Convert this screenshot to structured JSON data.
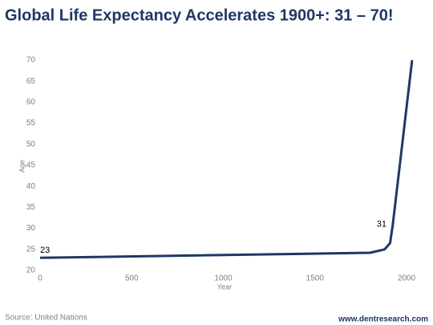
{
  "chart_data": {
    "type": "line",
    "title": "Global Life Expectancy Accelerates 1900+: 31 – 70!",
    "x_label": "Year",
    "y_label": "Age",
    "x": [
      0,
      1800,
      1880,
      1910,
      1925,
      2030
    ],
    "series": [
      {
        "name": "Life expectancy",
        "color": "#1f3864",
        "values": [
          23,
          24.2,
          25,
          26.5,
          31,
          70
        ],
        "value_labels": [
          "23",
          null,
          null,
          null,
          "31",
          null
        ]
      }
    ],
    "xlim": [
      0,
      2050
    ],
    "xticks": [
      0,
      500,
      1000,
      1500,
      2000
    ],
    "ylim": [
      20,
      72
    ],
    "yticks": [
      20,
      25,
      30,
      35,
      40,
      45,
      50,
      55,
      60,
      65,
      70
    ],
    "grid": false,
    "legend": false,
    "source": "Source: United Nations",
    "website": "www.dentresearch.com"
  }
}
